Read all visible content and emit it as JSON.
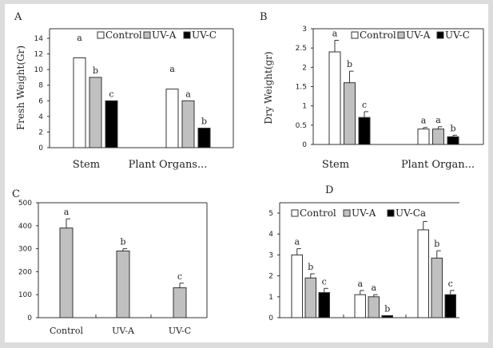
{
  "chart_data": [
    {
      "panel": "A",
      "type": "bar",
      "ylabel": "Fresh Weight(Gr)",
      "ylim": [
        0,
        14
      ],
      "yticks": [
        0,
        2,
        4,
        6,
        8,
        10,
        12,
        14
      ],
      "categories": [
        "Stem",
        "Plant Organs..."
      ],
      "legend": {
        "placement": "top",
        "entries": [
          "Control",
          "UV-A",
          "UV-C"
        ]
      },
      "series": [
        {
          "name": "Control",
          "color": "#ffffff",
          "values": [
            11.5,
            7.5
          ],
          "letters": [
            "a",
            "a"
          ]
        },
        {
          "name": "UV-A",
          "color": "#c0c0c0",
          "values": [
            9.0,
            6.0
          ],
          "letters": [
            "b",
            "a"
          ]
        },
        {
          "name": "UV-C",
          "color": "#000000",
          "values": [
            6.0,
            2.5
          ],
          "letters": [
            "c",
            "b"
          ]
        }
      ]
    },
    {
      "panel": "B",
      "type": "bar",
      "ylabel": "Dry Weight(gr)",
      "ylim": [
        0,
        3
      ],
      "yticks": [
        0,
        0.5,
        1,
        1.5,
        2,
        2.5,
        3
      ],
      "categories": [
        "Stem",
        "Plant Organ..."
      ],
      "legend": {
        "placement": "top-right",
        "entries": [
          "Control",
          "UV-A",
          "UV-C"
        ]
      },
      "series": [
        {
          "name": "Control",
          "color": "#ffffff",
          "values": [
            2.4,
            0.4
          ],
          "errors": [
            0.3,
            0.04
          ],
          "letters": [
            "a",
            "a"
          ]
        },
        {
          "name": "UV-A",
          "color": "#c0c0c0",
          "values": [
            1.6,
            0.4
          ],
          "errors": [
            0.3,
            0.06
          ],
          "letters": [
            "b",
            "a"
          ]
        },
        {
          "name": "UV-C",
          "color": "#000000",
          "values": [
            0.7,
            0.2
          ],
          "errors": [
            0.15,
            0.04
          ],
          "letters": [
            "c",
            "b"
          ]
        }
      ]
    },
    {
      "panel": "C",
      "type": "bar",
      "ylim": [
        0,
        500
      ],
      "yticks": [
        0,
        100,
        200,
        300,
        400,
        500
      ],
      "categories": [
        "Control",
        "UV-A",
        "UV-C"
      ],
      "series": [
        {
          "color": "#c0c0c0",
          "values": [
            390,
            290,
            130
          ],
          "errors": [
            40,
            10,
            20
          ],
          "letters": [
            "a",
            "b",
            "c"
          ]
        }
      ]
    },
    {
      "panel": "D",
      "type": "bar",
      "ylim": [
        0,
        5
      ],
      "yticks": [
        0,
        1,
        2,
        3,
        4,
        5
      ],
      "categories": [
        "",
        "",
        ""
      ],
      "legend": {
        "placement": "top",
        "entries": [
          "Control",
          "UV-A",
          "UV-Ca"
        ]
      },
      "series": [
        {
          "name": "Control",
          "color": "#ffffff",
          "values": [
            3.0,
            1.1,
            4.2
          ],
          "errors": [
            0.3,
            0.2,
            0.4
          ],
          "letters": [
            "a",
            "a",
            ""
          ]
        },
        {
          "name": "UV-A",
          "color": "#c0c0c0",
          "values": [
            1.9,
            1.0,
            2.85
          ],
          "errors": [
            0.2,
            0.1,
            0.35
          ],
          "letters": [
            "b",
            "a",
            "b"
          ]
        },
        {
          "name": "UV-Ca",
          "color": "#000000",
          "values": [
            1.2,
            0.1,
            1.1
          ],
          "errors": [
            0.2,
            0,
            0.2
          ],
          "letters": [
            "c",
            "b",
            "c"
          ]
        }
      ]
    }
  ]
}
